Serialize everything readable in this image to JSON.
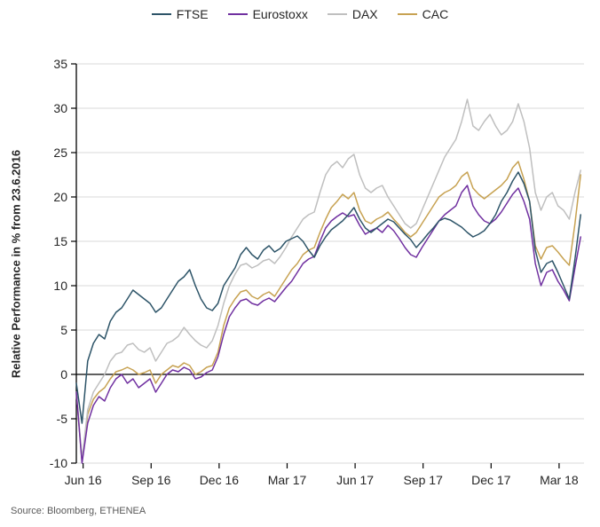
{
  "source": "Source: Bloomberg, ETHENEA",
  "chart_data": {
    "type": "line",
    "title": "",
    "ylabel": "Relative Performance in % from 23.6.2016",
    "xlabel": "",
    "ylim": [
      -10,
      35
    ],
    "xlim": [
      0,
      22.4
    ],
    "y_ticks": [
      35,
      30,
      25,
      20,
      15,
      10,
      5,
      0,
      -5,
      -10
    ],
    "x_tick_positions": [
      0.3,
      3.3,
      6.3,
      9.3,
      12.3,
      15.3,
      18.3,
      21.3
    ],
    "x_tick_labels": [
      "Jun 16",
      "Sep 16",
      "Dec 16",
      "Mar 17",
      "Jun 17",
      "Sep 17",
      "Dec 17",
      "Mar 18"
    ],
    "grid": "horizontal",
    "zero_line": true,
    "legend_position": "top",
    "x0": 0,
    "dx": 0.25,
    "series": [
      {
        "name": "FTSE",
        "color": "#2d5468",
        "values": [
          -1.0,
          -5.5,
          1.5,
          3.5,
          4.5,
          4.0,
          6.0,
          7.0,
          7.5,
          8.5,
          9.5,
          9.0,
          8.5,
          8.0,
          7.0,
          7.5,
          8.5,
          9.5,
          10.5,
          11.0,
          11.8,
          10.0,
          8.5,
          7.5,
          7.2,
          8.0,
          10.0,
          11.0,
          12.0,
          13.5,
          14.3,
          13.5,
          13.0,
          14.0,
          14.5,
          13.8,
          14.2,
          15.0,
          15.3,
          15.6,
          15.0,
          14.0,
          13.2,
          14.5,
          15.5,
          16.3,
          16.8,
          17.3,
          18.0,
          18.8,
          17.5,
          16.5,
          16.0,
          16.5,
          17.0,
          17.5,
          17.2,
          16.5,
          15.8,
          15.2,
          14.3,
          15.0,
          15.8,
          16.5,
          17.3,
          17.6,
          17.4,
          17.0,
          16.6,
          16.0,
          15.5,
          15.8,
          16.2,
          17.0,
          18.0,
          19.5,
          20.5,
          21.8,
          22.8,
          21.5,
          19.5,
          14.0,
          11.5,
          12.5,
          12.8,
          11.5,
          10.0,
          8.5,
          13.0,
          18.0
        ]
      },
      {
        "name": "Eurostoxx",
        "color": "#7030a0",
        "values": [
          -2.0,
          -10.0,
          -5.5,
          -3.5,
          -2.5,
          -3.0,
          -1.5,
          -0.5,
          0.0,
          -1.0,
          -0.5,
          -1.5,
          -1.0,
          -0.5,
          -2.0,
          -1.0,
          0.0,
          0.5,
          0.3,
          0.8,
          0.5,
          -0.5,
          -0.3,
          0.2,
          0.5,
          2.0,
          4.5,
          6.5,
          7.5,
          8.3,
          8.5,
          8.0,
          7.8,
          8.3,
          8.6,
          8.2,
          9.0,
          9.8,
          10.5,
          11.5,
          12.5,
          13.0,
          13.3,
          15.0,
          16.5,
          17.3,
          17.8,
          18.2,
          17.8,
          18.0,
          16.8,
          15.8,
          16.2,
          16.5,
          16.0,
          16.8,
          16.2,
          15.3,
          14.3,
          13.5,
          13.2,
          14.3,
          15.3,
          16.3,
          17.3,
          18.0,
          18.5,
          19.0,
          20.5,
          21.3,
          19.0,
          18.0,
          17.3,
          17.0,
          17.5,
          18.3,
          19.3,
          20.3,
          21.0,
          19.5,
          17.5,
          12.5,
          10.0,
          11.5,
          11.8,
          10.5,
          9.5,
          8.3,
          12.0,
          15.5
        ]
      },
      {
        "name": "DAX",
        "color": "#bfbfbf",
        "values": [
          -2.0,
          -9.5,
          -4.0,
          -2.0,
          -1.0,
          0.0,
          1.5,
          2.3,
          2.5,
          3.3,
          3.5,
          2.8,
          2.5,
          3.0,
          1.5,
          2.5,
          3.5,
          3.8,
          4.3,
          5.3,
          4.5,
          3.8,
          3.3,
          3.0,
          3.8,
          5.5,
          8.0,
          10.0,
          11.3,
          12.3,
          12.5,
          12.0,
          12.3,
          12.8,
          13.0,
          12.5,
          13.3,
          14.3,
          15.5,
          16.5,
          17.5,
          18.0,
          18.3,
          20.5,
          22.5,
          23.5,
          24.0,
          23.3,
          24.3,
          24.8,
          22.5,
          21.0,
          20.5,
          21.0,
          21.3,
          20.0,
          19.0,
          18.0,
          17.0,
          16.5,
          17.0,
          18.5,
          20.0,
          21.5,
          23.0,
          24.5,
          25.5,
          26.5,
          28.5,
          31.0,
          28.0,
          27.5,
          28.5,
          29.3,
          28.0,
          27.0,
          27.5,
          28.5,
          30.5,
          28.5,
          25.5,
          20.5,
          18.5,
          20.0,
          20.5,
          19.0,
          18.5,
          17.5,
          20.5,
          23.0
        ]
      },
      {
        "name": "CAC",
        "color": "#c7a252",
        "values": [
          -2.0,
          -9.8,
          -4.5,
          -2.8,
          -2.0,
          -1.5,
          -0.5,
          0.3,
          0.5,
          0.8,
          0.5,
          0.0,
          0.2,
          0.5,
          -1.0,
          0.0,
          0.5,
          1.0,
          0.8,
          1.3,
          1.0,
          0.0,
          0.3,
          0.8,
          1.0,
          2.5,
          5.5,
          7.5,
          8.5,
          9.3,
          9.5,
          8.8,
          8.5,
          9.0,
          9.3,
          8.8,
          9.8,
          10.8,
          11.8,
          12.5,
          13.5,
          14.0,
          14.3,
          16.0,
          17.5,
          18.8,
          19.5,
          20.3,
          19.8,
          20.5,
          18.5,
          17.3,
          17.0,
          17.5,
          17.8,
          18.3,
          17.5,
          16.8,
          16.0,
          15.5,
          16.0,
          17.0,
          18.0,
          19.0,
          20.0,
          20.5,
          20.8,
          21.3,
          22.3,
          22.8,
          21.0,
          20.3,
          19.8,
          20.3,
          20.8,
          21.3,
          22.0,
          23.3,
          24.0,
          22.0,
          19.5,
          14.5,
          13.0,
          14.3,
          14.5,
          13.8,
          13.0,
          12.3,
          17.0,
          22.5
        ]
      }
    ]
  }
}
